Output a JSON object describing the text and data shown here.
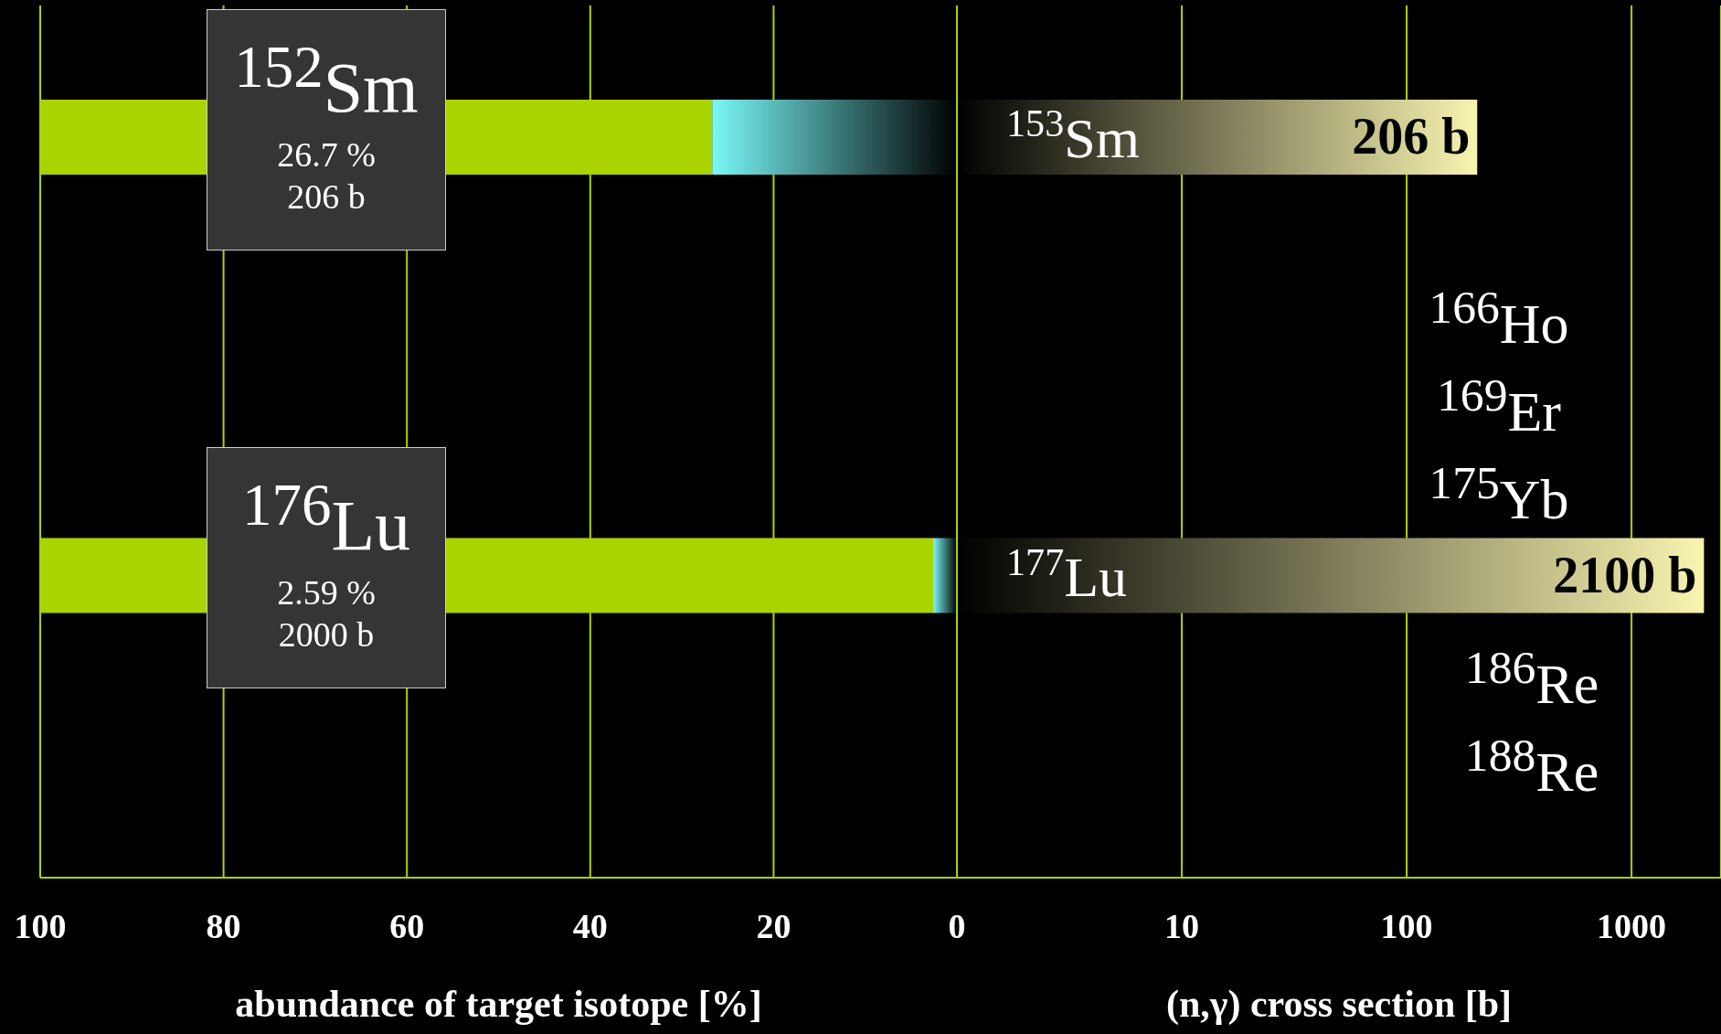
{
  "chart_data": [
    {
      "type": "bar",
      "orientation": "horizontal",
      "stacked": true,
      "categories": [
        "$^{152}$Sm",
        "$^{176}$Lu"
      ],
      "series": [
        {
          "color": "#7af8f8",
          "values": [
            26.7,
            2.59
          ]
        },
        {
          "color": "#aad400",
          "values": [
            73.3,
            97.4
          ]
        }
      ],
      "xlim": [
        100,
        0
      ],
      "xticks": [
        100,
        80,
        60,
        40,
        20,
        0
      ],
      "xlabel": "abundance of target isotope [%]",
      "grid": "x",
      "annotations": [
        "26.7 %",
        "206 b",
        "2.59 %",
        "2000 b"
      ]
    },
    {
      "type": "bar",
      "orientation": "horizontal",
      "log": "x",
      "categories": [
        "$^{153}$Sm",
        "$^{177}$Lu"
      ],
      "series": [
        {
          "color": "#f8f4b0",
          "values": [
            206,
            2100
          ],
          "value_labels": [
            "206 b",
            "2100 b"
          ]
        }
      ],
      "xlim": [
        1,
        2500
      ],
      "xticks": [
        {
          "value": 1,
          "label": null
        },
        10,
        100,
        1000
      ],
      "xlabel": "(n,γ) cross section [b]",
      "grid": "x",
      "annotations": [
        "$^{166}$Ho",
        "$^{169}$Er",
        "$^{175}$Yb",
        "$^{186}$Re",
        "$^{188}$Re"
      ]
    }
  ]
}
